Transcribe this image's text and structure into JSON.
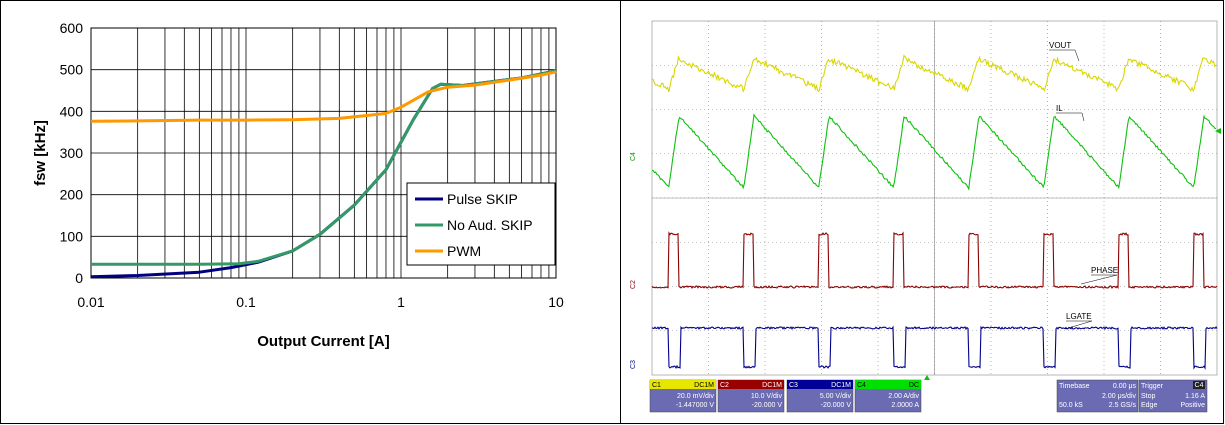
{
  "chart_data": [
    {
      "type": "line",
      "title": "",
      "xlabel": "Output Current [A]",
      "ylabel": "fsw [kHz]",
      "xscale": "log",
      "xlim": [
        0.01,
        10
      ],
      "ylim": [
        0,
        600
      ],
      "x_ticks": [
        "0.01",
        "0.1",
        "1",
        "10"
      ],
      "y_ticks": [
        "0",
        "100",
        "200",
        "300",
        "400",
        "500",
        "600"
      ],
      "grid": true,
      "legend_position": "lower-right",
      "series": [
        {
          "name": "Pulse SKIP",
          "color": "#000080",
          "x": [
            0.01,
            0.02,
            0.05,
            0.08,
            0.12,
            0.2,
            0.3,
            0.5,
            0.8,
            1.2,
            1.6,
            1.8,
            2.5,
            4,
            6,
            10
          ],
          "y": [
            3,
            6,
            14,
            25,
            38,
            65,
            105,
            175,
            260,
            380,
            455,
            465,
            462,
            472,
            480,
            497
          ]
        },
        {
          "name": "No Aud. SKIP",
          "color": "#339966",
          "x": [
            0.01,
            0.05,
            0.09,
            0.12,
            0.2,
            0.3,
            0.5,
            0.8,
            1.2,
            1.6,
            1.8,
            2.5,
            4,
            6,
            10
          ],
          "y": [
            33,
            33,
            34,
            40,
            65,
            105,
            175,
            260,
            380,
            455,
            465,
            462,
            472,
            480,
            497
          ]
        },
        {
          "name": "PWM",
          "color": "#FF9900",
          "x": [
            0.01,
            0.02,
            0.05,
            0.1,
            0.2,
            0.4,
            0.6,
            0.8,
            1.0,
            1.5,
            2.0,
            3,
            5,
            8,
            10
          ],
          "y": [
            376,
            377,
            379,
            379,
            380,
            383,
            390,
            395,
            410,
            447,
            458,
            463,
            475,
            487,
            495
          ]
        }
      ]
    },
    {
      "type": "line",
      "title": "",
      "traces": [
        {
          "channel": "C1",
          "name": "VOUT",
          "color": "#e6e600"
        },
        {
          "channel": "C4",
          "name": "IL",
          "color": "#00e000"
        },
        {
          "channel": "C2",
          "name": "PHASE",
          "color": "#990000"
        },
        {
          "channel": "C3",
          "name": "LGATE",
          "color": "#000099"
        }
      ],
      "grid": true
    }
  ],
  "scope": {
    "trace_labels": [
      "VOUT",
      "IL",
      "PHASE",
      "LGATE"
    ],
    "channel_markers": [
      "C4",
      "C2",
      "C3"
    ],
    "channels": [
      {
        "id": "C1",
        "scale": "20.0 mV/div",
        "offset": "-1.447000 V",
        "color": "#e6e600",
        "flags": "DC1M"
      },
      {
        "id": "C2",
        "scale": "10.0 V/div",
        "offset": "-20.000 V",
        "color": "#990000",
        "flags": "DC1M"
      },
      {
        "id": "C3",
        "scale": "5.00 V/div",
        "offset": "-20.000 V",
        "color": "#000099",
        "flags": "DC1M"
      },
      {
        "id": "C4",
        "scale": "2.00 A/div",
        "offset": "2.0000 A",
        "color": "#00e000",
        "flags": "DC"
      }
    ],
    "timebase": {
      "label": "Timebase",
      "value": "0.00 μs",
      "per_div": "2.00 μs/div",
      "samples": "50.0 kS",
      "rate": "2.5 GS/s"
    },
    "trigger": {
      "label": "Trigger",
      "channel": "C4",
      "mode": "Stop",
      "level": "1.16 A",
      "type": "Edge",
      "slope": "Positive"
    }
  }
}
